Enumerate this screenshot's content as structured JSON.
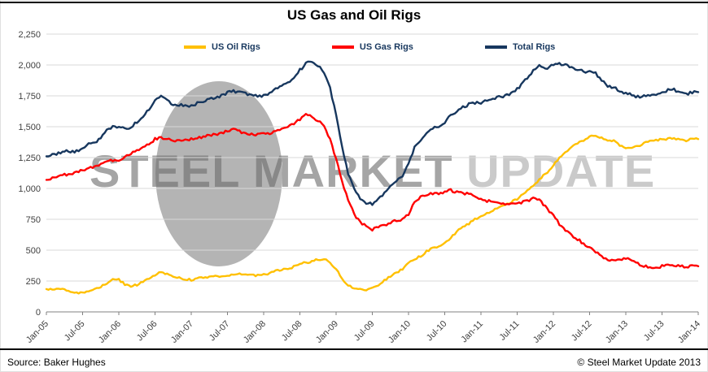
{
  "page": {
    "title": "US Gas and Oil Rigs"
  },
  "watermark": {
    "primary": "STEEL MARKET",
    "secondary": "UPDATE"
  },
  "footer": {
    "source": "Source: Baker Hughes",
    "copyright": "© Steel Market Update 2013"
  },
  "chart_data": {
    "type": "line",
    "title": "US Gas and Oil Rigs",
    "xlabel": "",
    "ylabel": "",
    "ylim": [
      0,
      2250
    ],
    "y_tick_step": 250,
    "y_ticks": [
      0,
      250,
      500,
      750,
      1000,
      1250,
      1500,
      1750,
      2000,
      2250
    ],
    "grid": "horizontal",
    "legend_position": "top-inside",
    "x_unit": "month",
    "x_range": [
      "Jan-05",
      "Jan-14"
    ],
    "x_tick_every_n_points": 6,
    "x_tick_labels": [
      "Jan-05",
      "Jul-05",
      "Jan-06",
      "Jul-06",
      "Jan-07",
      "Jul-07",
      "Jan-08",
      "Jul-08",
      "Jan-09",
      "Jul-09",
      "Jan-10",
      "Jul-10",
      "Jan-11",
      "Jul-11",
      "Jan-12",
      "Jul-12",
      "Jan-13",
      "Jul-13",
      "Jan-14"
    ],
    "series": [
      {
        "name": "US Oil Rigs",
        "color": "#FFC000",
        "values": [
          185,
          180,
          190,
          185,
          165,
          155,
          150,
          165,
          185,
          200,
          235,
          265,
          260,
          225,
          205,
          220,
          245,
          270,
          300,
          320,
          310,
          290,
          275,
          265,
          260,
          270,
          280,
          285,
          290,
          290,
          295,
          300,
          305,
          310,
          300,
          295,
          300,
          315,
          330,
          345,
          350,
          365,
          390,
          400,
          410,
          425,
          430,
          400,
          345,
          270,
          215,
          190,
          180,
          180,
          190,
          210,
          255,
          290,
          320,
          345,
          395,
          430,
          450,
          490,
          515,
          535,
          560,
          600,
          650,
          690,
          715,
          750,
          775,
          800,
          820,
          850,
          870,
          890,
          915,
          960,
          1000,
          1040,
          1090,
          1130,
          1190,
          1250,
          1300,
          1330,
          1370,
          1390,
          1420,
          1430,
          1410,
          1390,
          1390,
          1350,
          1330,
          1330,
          1340,
          1370,
          1390,
          1390,
          1400,
          1400,
          1410,
          1390,
          1390,
          1400,
          1400
        ]
      },
      {
        "name": "US Gas Rigs",
        "color": "#FF0000",
        "values": [
          1070,
          1085,
          1100,
          1110,
          1120,
          1130,
          1150,
          1170,
          1180,
          1200,
          1220,
          1230,
          1230,
          1250,
          1280,
          1310,
          1330,
          1360,
          1400,
          1410,
          1400,
          1380,
          1390,
          1400,
          1400,
          1410,
          1420,
          1430,
          1440,
          1450,
          1470,
          1480,
          1460,
          1450,
          1440,
          1440,
          1440,
          1450,
          1470,
          1480,
          1500,
          1530,
          1560,
          1600,
          1580,
          1550,
          1500,
          1400,
          1240,
          1060,
          900,
          790,
          730,
          690,
          670,
          690,
          700,
          720,
          740,
          750,
          790,
          890,
          930,
          950,
          960,
          960,
          970,
          985,
          970,
          960,
          955,
          935,
          910,
          900,
          890,
          880,
          870,
          870,
          880,
          890,
          900,
          925,
          895,
          830,
          790,
          710,
          660,
          620,
          590,
          550,
          520,
          490,
          450,
          425,
          420,
          430,
          430,
          420,
          390,
          375,
          355,
          355,
          370,
          385,
          380,
          370,
          365,
          370,
          370
        ]
      },
      {
        "name": "Total Rigs",
        "color": "#17375E",
        "values": [
          1260,
          1270,
          1290,
          1300,
          1295,
          1300,
          1320,
          1355,
          1375,
          1405,
          1465,
          1505,
          1500,
          1485,
          1495,
          1540,
          1585,
          1640,
          1710,
          1740,
          1720,
          1680,
          1675,
          1675,
          1670,
          1690,
          1710,
          1725,
          1740,
          1750,
          1775,
          1790,
          1775,
          1770,
          1750,
          1745,
          1750,
          1775,
          1810,
          1835,
          1860,
          1905,
          1960,
          2010,
          2030,
          1995,
          1940,
          1810,
          1595,
          1340,
          1125,
          990,
          920,
          880,
          875,
          910,
          965,
          1020,
          1070,
          1105,
          1195,
          1330,
          1390,
          1450,
          1485,
          1505,
          1540,
          1595,
          1630,
          1660,
          1680,
          1695,
          1695,
          1710,
          1720,
          1740,
          1750,
          1770,
          1805,
          1860,
          1910,
          1975,
          1995,
          1970,
          2000,
          2010,
          2005,
          1980,
          1970,
          1950,
          1945,
          1930,
          1870,
          1830,
          1820,
          1790,
          1770,
          1760,
          1740,
          1755,
          1755,
          1755,
          1780,
          1795,
          1800,
          1770,
          1765,
          1780,
          1780
        ]
      }
    ]
  }
}
